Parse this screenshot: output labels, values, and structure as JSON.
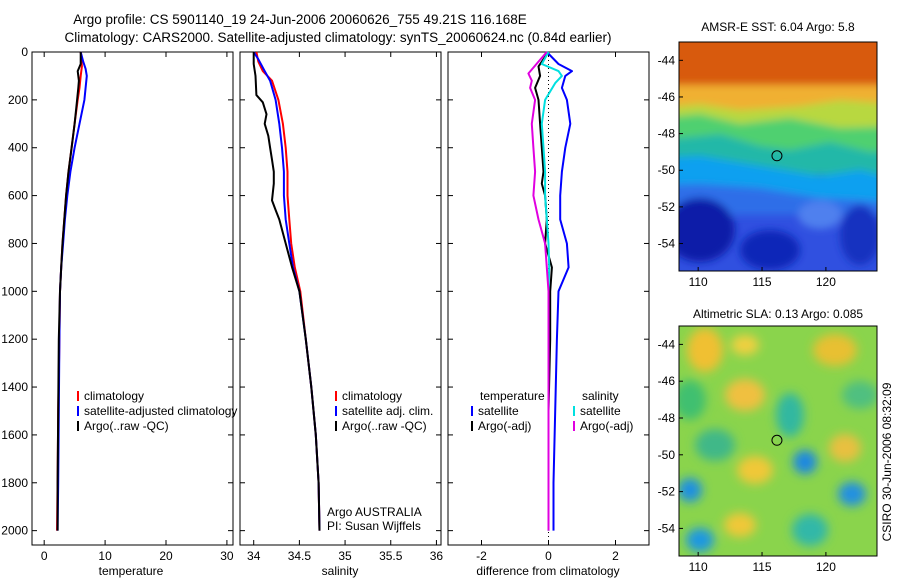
{
  "figure": {
    "title_line1": "Argo profile: CS 5901140_19 24-Jun-2006 20060626_755 49.21S 116.168E",
    "title_line2": "Climatology: CARS2000. Satellite-adjusted climatology: synTS_20060624.nc (0.84d earlier)",
    "credit": "CSIRO 30-Jun-2006 08:32:09"
  },
  "chart_data": [
    {
      "id": "temperature",
      "type": "line",
      "xlabel": "temperature",
      "ylabel": "",
      "xlim": [
        -2,
        31
      ],
      "ylim": [
        2060,
        0
      ],
      "x_ticks": [
        0,
        10,
        20,
        30
      ],
      "y_ticks": [
        0,
        200,
        400,
        600,
        800,
        1000,
        1200,
        1400,
        1600,
        1800,
        2000
      ],
      "legend": [
        "climatology",
        "satellite-adjusted climatology",
        "Argo(..raw -QC)"
      ],
      "series": [
        {
          "name": "climatology",
          "color": "#ff0000",
          "points": [
            [
              6.0,
              0
            ],
            [
              6.1,
              20
            ],
            [
              6.2,
              60
            ],
            [
              6.0,
              100
            ],
            [
              5.8,
              150
            ],
            [
              5.5,
              200
            ],
            [
              5.0,
              300
            ],
            [
              4.5,
              400
            ],
            [
              4.0,
              500
            ],
            [
              3.6,
              600
            ],
            [
              3.3,
              700
            ],
            [
              3.0,
              800
            ],
            [
              2.8,
              900
            ],
            [
              2.6,
              1000
            ],
            [
              2.5,
              1200
            ],
            [
              2.3,
              1500
            ],
            [
              2.2,
              1800
            ],
            [
              2.1,
              2000
            ]
          ]
        },
        {
          "name": "satellite-adjusted climatology",
          "color": "#0000ff",
          "points": [
            [
              6.0,
              0
            ],
            [
              6.4,
              40
            ],
            [
              6.8,
              70
            ],
            [
              7.0,
              100
            ],
            [
              6.8,
              150
            ],
            [
              6.6,
              200
            ],
            [
              5.8,
              300
            ],
            [
              5.0,
              400
            ],
            [
              4.3,
              500
            ],
            [
              3.8,
              600
            ],
            [
              3.4,
              700
            ],
            [
              3.1,
              800
            ],
            [
              2.8,
              900
            ],
            [
              2.6,
              1000
            ],
            [
              2.5,
              1200
            ],
            [
              2.4,
              1500
            ],
            [
              2.3,
              1800
            ],
            [
              2.2,
              2000
            ]
          ]
        },
        {
          "name": "Argo(..raw -QC)",
          "color": "#000000",
          "points": [
            [
              6.0,
              0
            ],
            [
              6.0,
              50
            ],
            [
              5.5,
              80
            ],
            [
              5.7,
              120
            ],
            [
              5.6,
              150
            ],
            [
              5.4,
              200
            ],
            [
              5.0,
              300
            ],
            [
              4.5,
              400
            ],
            [
              4.0,
              500
            ],
            [
              3.6,
              600
            ],
            [
              3.3,
              700
            ],
            [
              3.0,
              800
            ],
            [
              2.8,
              900
            ],
            [
              2.6,
              1000
            ],
            [
              2.4,
              1200
            ],
            [
              2.3,
              1500
            ],
            [
              2.2,
              1800
            ],
            [
              2.2,
              2000
            ]
          ]
        }
      ]
    },
    {
      "id": "salinity",
      "type": "line",
      "xlabel": "salinity",
      "ylabel": "",
      "xlim": [
        33.85,
        36.05
      ],
      "ylim": [
        2060,
        0
      ],
      "x_ticks": [
        34,
        34.5,
        35,
        35.5,
        36
      ],
      "legend": [
        "climatology",
        "satellite adj. clim.",
        "Argo(..raw -QC)"
      ],
      "annotation_line1": "Argo AUSTRALIA",
      "annotation_line2": "PI: Susan Wijffels",
      "series": [
        {
          "name": "climatology",
          "color": "#ff0000",
          "points": [
            [
              34.03,
              0
            ],
            [
              34.05,
              40
            ],
            [
              34.1,
              80
            ],
            [
              34.2,
              120
            ],
            [
              34.27,
              200
            ],
            [
              34.32,
              300
            ],
            [
              34.35,
              400
            ],
            [
              34.37,
              500
            ],
            [
              34.37,
              600
            ],
            [
              34.39,
              700
            ],
            [
              34.41,
              800
            ],
            [
              34.45,
              900
            ],
            [
              34.51,
              1000
            ],
            [
              34.57,
              1200
            ],
            [
              34.63,
              1400
            ],
            [
              34.68,
              1600
            ],
            [
              34.71,
              1800
            ],
            [
              34.72,
              2000
            ]
          ]
        },
        {
          "name": "satellite adj. clim.",
          "color": "#0000ff",
          "points": [
            [
              34.0,
              0
            ],
            [
              34.05,
              30
            ],
            [
              34.12,
              80
            ],
            [
              34.18,
              120
            ],
            [
              34.24,
              200
            ],
            [
              34.28,
              300
            ],
            [
              34.31,
              400
            ],
            [
              34.33,
              500
            ],
            [
              34.33,
              600
            ],
            [
              34.35,
              700
            ],
            [
              34.39,
              800
            ],
            [
              34.43,
              900
            ],
            [
              34.5,
              1000
            ],
            [
              34.57,
              1200
            ],
            [
              34.63,
              1400
            ],
            [
              34.68,
              1600
            ],
            [
              34.71,
              1800
            ],
            [
              34.72,
              2000
            ]
          ]
        },
        {
          "name": "Argo(..raw -QC)",
          "color": "#000000",
          "points": [
            [
              34.0,
              0
            ],
            [
              34.0,
              50
            ],
            [
              34.02,
              100
            ],
            [
              34.03,
              180
            ],
            [
              34.1,
              210
            ],
            [
              34.14,
              260
            ],
            [
              34.12,
              300
            ],
            [
              34.16,
              350
            ],
            [
              34.18,
              400
            ],
            [
              34.2,
              450
            ],
            [
              34.22,
              500
            ],
            [
              34.22,
              550
            ],
            [
              34.2,
              620
            ],
            [
              34.24,
              660
            ],
            [
              34.28,
              700
            ],
            [
              34.35,
              800
            ],
            [
              34.42,
              900
            ],
            [
              34.5,
              1000
            ],
            [
              34.57,
              1200
            ],
            [
              34.63,
              1400
            ],
            [
              34.68,
              1600
            ],
            [
              34.71,
              1800
            ],
            [
              34.72,
              2000
            ]
          ]
        }
      ]
    },
    {
      "id": "difference",
      "type": "line",
      "xlabel": "difference from climatology",
      "ylabel": "",
      "xlim": [
        -3,
        3
      ],
      "ylim": [
        2060,
        0
      ],
      "x_ticks": [
        -2,
        0,
        2
      ],
      "legend_headers": [
        "temperature",
        "salinity"
      ],
      "legend": [
        "satellite",
        "Argo(-adj)",
        "satellite",
        "Argo(-adj)"
      ],
      "series": [
        {
          "name": "temperature satellite",
          "color": "#0000ff",
          "points": [
            [
              -0.05,
              0
            ],
            [
              0.3,
              50
            ],
            [
              0.7,
              80
            ],
            [
              0.5,
              100
            ],
            [
              0.4,
              150
            ],
            [
              0.55,
              200
            ],
            [
              0.65,
              300
            ],
            [
              0.5,
              400
            ],
            [
              0.4,
              500
            ],
            [
              0.35,
              600
            ],
            [
              0.35,
              700
            ],
            [
              0.55,
              800
            ],
            [
              0.6,
              900
            ],
            [
              0.3,
              1000
            ],
            [
              0.25,
              1200
            ],
            [
              0.2,
              1500
            ],
            [
              0.15,
              1800
            ],
            [
              0.15,
              2000
            ]
          ]
        },
        {
          "name": "temperature Argo(-adj)",
          "color": "#000000",
          "points": [
            [
              0.0,
              0
            ],
            [
              -0.3,
              60
            ],
            [
              -0.25,
              100
            ],
            [
              -0.4,
              150
            ],
            [
              -0.3,
              200
            ],
            [
              -0.25,
              300
            ],
            [
              -0.2,
              400
            ],
            [
              -0.15,
              500
            ],
            [
              -0.2,
              550
            ],
            [
              -0.1,
              600
            ],
            [
              -0.05,
              700
            ],
            [
              -0.1,
              800
            ],
            [
              0.1,
              900
            ],
            [
              0.05,
              1000
            ],
            [
              0.05,
              1200
            ],
            [
              0.0,
              1500
            ],
            [
              0.0,
              1800
            ],
            [
              0.0,
              2000
            ]
          ]
        },
        {
          "name": "salinity satellite",
          "color": "#00e0e0",
          "points": [
            [
              0.0,
              0
            ],
            [
              -0.2,
              50
            ],
            [
              0.3,
              80
            ],
            [
              0.4,
              100
            ],
            [
              0.2,
              130
            ],
            [
              -0.1,
              200
            ],
            [
              -0.2,
              300
            ],
            [
              -0.15,
              400
            ],
            [
              -0.1,
              500
            ],
            [
              -0.1,
              600
            ],
            [
              -0.05,
              700
            ],
            [
              0.0,
              800
            ],
            [
              0.02,
              900
            ],
            [
              0.0,
              1000
            ],
            [
              0.0,
              1200
            ],
            [
              0.0,
              1500
            ],
            [
              0.0,
              1800
            ],
            [
              0.0,
              2000
            ]
          ]
        },
        {
          "name": "salinity Argo(-adj)",
          "color": "#e000e0",
          "points": [
            [
              -0.05,
              0
            ],
            [
              -0.3,
              40
            ],
            [
              -0.6,
              90
            ],
            [
              -0.5,
              120
            ],
            [
              -0.55,
              150
            ],
            [
              -0.4,
              200
            ],
            [
              -0.5,
              300
            ],
            [
              -0.45,
              400
            ],
            [
              -0.4,
              500
            ],
            [
              -0.45,
              600
            ],
            [
              -0.3,
              700
            ],
            [
              -0.1,
              800
            ],
            [
              -0.05,
              900
            ],
            [
              0.0,
              1000
            ],
            [
              0.0,
              1200
            ],
            [
              0.0,
              1500
            ],
            [
              0.0,
              1800
            ],
            [
              0.0,
              2000
            ]
          ]
        }
      ]
    },
    {
      "id": "sst_map",
      "type": "heatmap",
      "title": "AMSR-E SST: 6.04  Argo: 5.8",
      "xlim": [
        108.5,
        124
      ],
      "ylim": [
        -55.5,
        -43
      ],
      "x_ticks": [
        110,
        115,
        120
      ],
      "y_ticks": [
        -44,
        -46,
        -48,
        -50,
        -52,
        -54
      ],
      "marker": {
        "lon": 116.168,
        "lat": -49.21
      },
      "colormap": "jet"
    },
    {
      "id": "sla_map",
      "type": "heatmap",
      "title": "Altimetric SLA: 0.13  Argo: 0.085",
      "xlim": [
        108.5,
        124
      ],
      "ylim": [
        -55.5,
        -43
      ],
      "x_ticks": [
        110,
        115,
        120
      ],
      "y_ticks": [
        -44,
        -46,
        -48,
        -50,
        -52,
        -54
      ],
      "marker": {
        "lon": 116.168,
        "lat": -49.21
      },
      "colormap": "jet"
    }
  ]
}
